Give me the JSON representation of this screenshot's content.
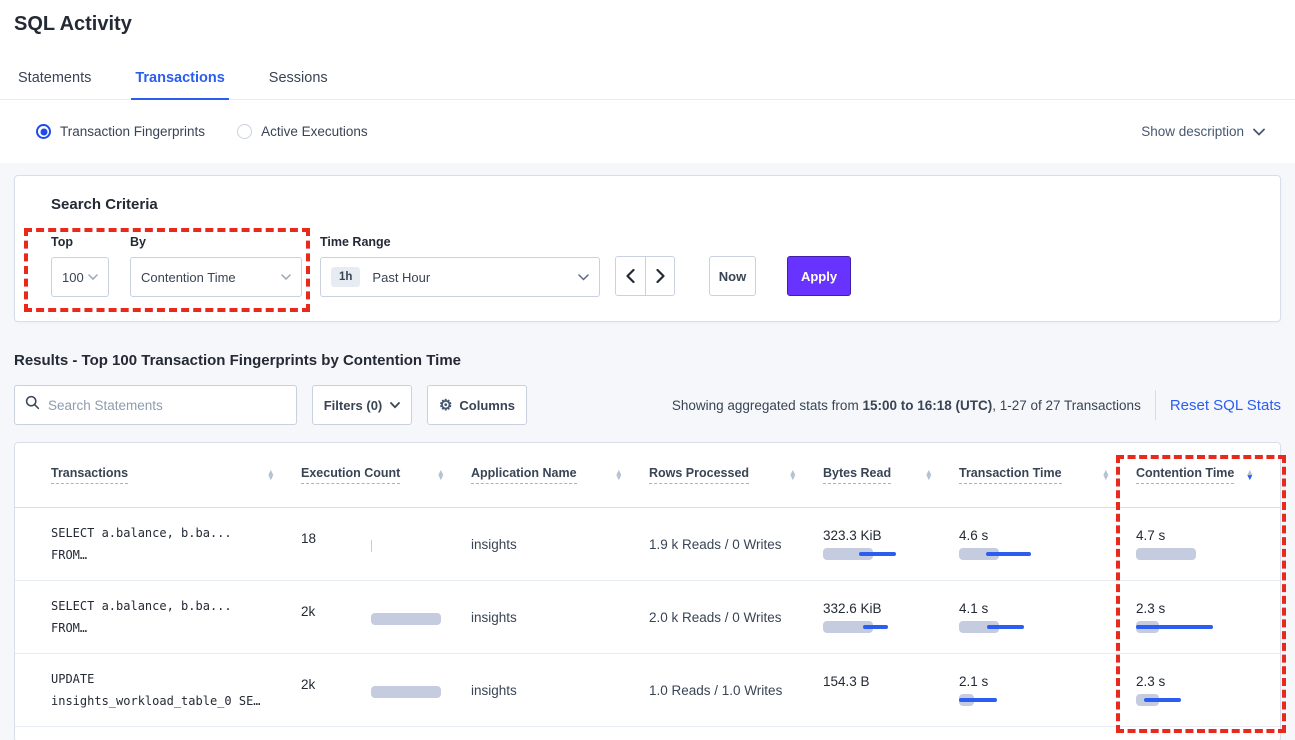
{
  "page": {
    "title": "SQL Activity"
  },
  "tabs": [
    {
      "label": "Statements",
      "active": false
    },
    {
      "label": "Transactions",
      "active": true
    },
    {
      "label": "Sessions",
      "active": false
    }
  ],
  "view_toggle": {
    "options": [
      {
        "label": "Transaction Fingerprints",
        "selected": true
      },
      {
        "label": "Active Executions",
        "selected": false
      }
    ],
    "show_description": "Show description"
  },
  "search_criteria": {
    "heading": "Search Criteria",
    "top": {
      "label": "Top",
      "value": "100"
    },
    "by": {
      "label": "By",
      "value": "Contention Time"
    },
    "time_range": {
      "label": "Time Range",
      "badge": "1h",
      "value": "Past Hour"
    },
    "now_label": "Now",
    "apply_label": "Apply"
  },
  "results": {
    "heading": "Results - Top 100 Transaction Fingerprints by Contention Time",
    "search_placeholder": "Search Statements",
    "filters_label": "Filters (0)",
    "columns_label": "Columns",
    "stats_prefix": "Showing aggregated stats from ",
    "stats_range": "15:00 to 16:18 (UTC)",
    "stats_suffix": ", 1-27 of 27 Transactions",
    "reset_link": "Reset SQL Stats"
  },
  "table": {
    "headers": [
      {
        "label": "Transactions",
        "sorted": null
      },
      {
        "label": "Execution Count",
        "sorted": null
      },
      {
        "label": "Application Name",
        "sorted": null
      },
      {
        "label": "Rows Processed",
        "sorted": null
      },
      {
        "label": "Bytes Read",
        "sorted": null
      },
      {
        "label": "Transaction Time",
        "sorted": null
      },
      {
        "label": "Contention Time",
        "sorted": "desc"
      }
    ],
    "rows": [
      {
        "query_line1": "SELECT a.balance, b.ba...",
        "query_line2": "FROM…",
        "execution_count": {
          "text": "18",
          "bar": {
            "grey": 1,
            "blue": null
          }
        },
        "application_name": "insights",
        "rows_processed": "1.9 k Reads / 0 Writes",
        "bytes_read": {
          "text": "323.3 KiB",
          "bar": {
            "grey": 50,
            "blue": [
              36,
              73
            ]
          }
        },
        "transaction_time": {
          "text": "4.6 s",
          "bar": {
            "grey": 40,
            "blue": [
              27,
              72
            ]
          }
        },
        "contention_time": {
          "text": "4.7 s",
          "bar": {
            "grey": 60,
            "blue": null
          }
        }
      },
      {
        "query_line1": "SELECT a.balance, b.ba...",
        "query_line2": "FROM…",
        "execution_count": {
          "text": "2k",
          "bar": {
            "grey": 70,
            "blue": null
          }
        },
        "application_name": "insights",
        "rows_processed": "2.0 k Reads / 0 Writes",
        "bytes_read": {
          "text": "332.6 KiB",
          "bar": {
            "grey": 50,
            "blue": [
              40,
              65
            ]
          }
        },
        "transaction_time": {
          "text": "4.1 s",
          "bar": {
            "grey": 40,
            "blue": [
              28,
              65
            ]
          }
        },
        "contention_time": {
          "text": "2.3 s",
          "bar": {
            "grey": 23,
            "blue": [
              0,
              77
            ]
          }
        }
      },
      {
        "query_line1": "UPDATE",
        "query_line2": "insights_workload_table_0 SE…",
        "execution_count": {
          "text": "2k",
          "bar": {
            "grey": 70,
            "blue": null
          }
        },
        "application_name": "insights",
        "rows_processed": "1.0 Reads / 1.0 Writes",
        "bytes_read": {
          "text": "154.3 B",
          "bar": null
        },
        "transaction_time": {
          "text": "2.1 s",
          "bar": {
            "grey": 15,
            "blue": [
              0,
              38
            ]
          }
        },
        "contention_time": {
          "text": "2.3 s",
          "bar": {
            "grey": 23,
            "blue": [
              8,
              45
            ]
          }
        }
      }
    ]
  },
  "colors": {
    "accent_blue": "#2b5df0",
    "radio_blue": "#1f4ae8",
    "brand_purple": "#6933ff",
    "annotation_red": "#e8291c",
    "bar_grey": "#c6ccdf",
    "bar_blue": "#2b5df0",
    "page_background": "#f5f7fa"
  }
}
